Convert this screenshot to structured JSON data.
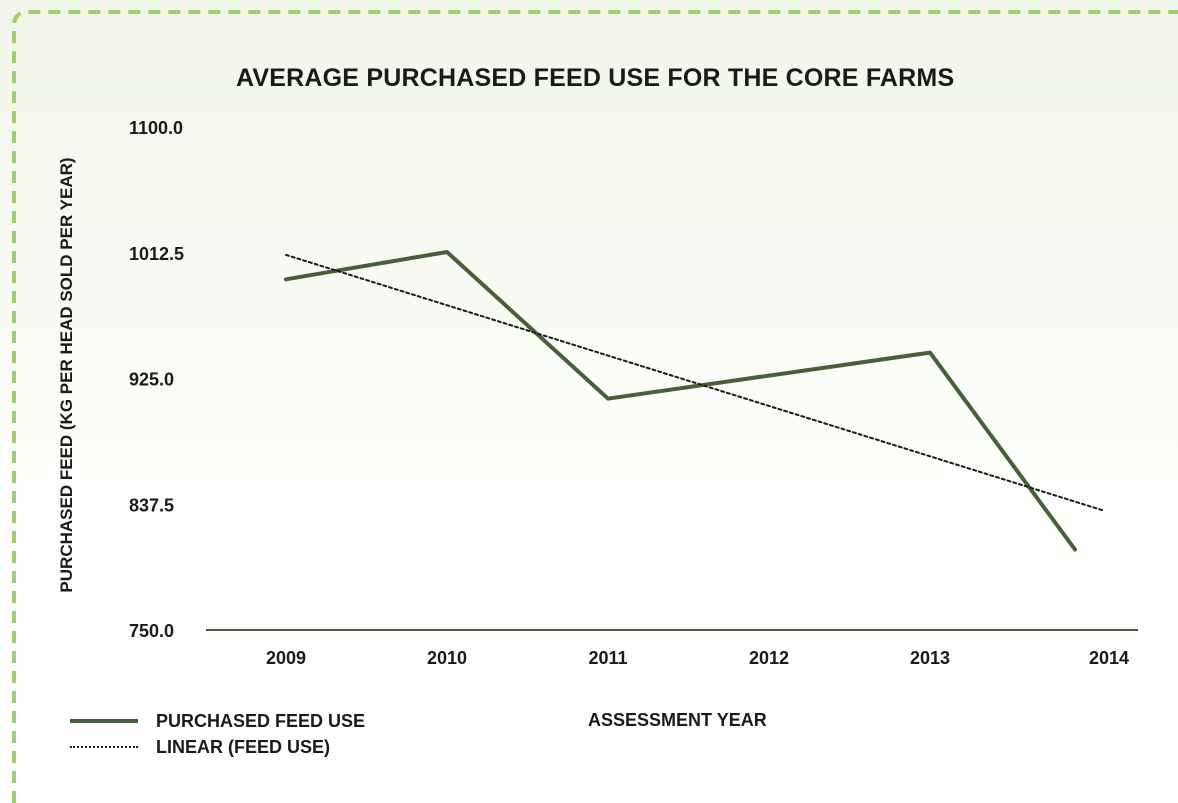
{
  "chart_data": {
    "type": "line",
    "title": "AVERAGE PURCHASED FEED USE FOR THE CORE FARMS",
    "xlabel": "ASSESSMENT YEAR",
    "ylabel": "PURCHASED FEED (KG PER HEAD SOLD PER YEAR)",
    "categories": [
      "2009",
      "2010",
      "2011",
      "2012",
      "2013",
      "2014"
    ],
    "x": [
      2009,
      2010,
      2011,
      2012,
      2013,
      2014
    ],
    "ylim": [
      750,
      1100
    ],
    "yticks": [
      "1100.0",
      "1012.5",
      "925.0",
      "837.5",
      "750.0"
    ],
    "yticks_values": [
      1100,
      1012.5,
      925,
      837.5,
      750
    ],
    "series": [
      {
        "name": "PURCHASED FEED USE",
        "x": [
          2009,
          2010,
          2011,
          2013,
          2014
        ],
        "values": [
          994,
          1013,
          911,
          943,
          806
        ],
        "color": "#46603a",
        "style": "solid"
      },
      {
        "name": "LINEAR (FEED USE)",
        "x": [
          2009,
          2014
        ],
        "values": [
          1011,
          833
        ],
        "color": "#1a1a1a",
        "style": "dotted"
      }
    ],
    "grid": false,
    "legend": "bottom-left"
  },
  "colors": {
    "frame_border": "#9ccf6e",
    "series_line": "#46603a",
    "axis_line": "#46603a",
    "text": "#1a1a1a"
  }
}
